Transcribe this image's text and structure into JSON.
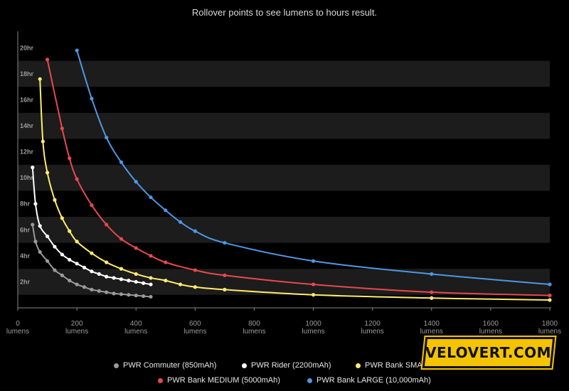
{
  "header": {
    "subtitle": "Rollover points to see lumens to hours result."
  },
  "logo": {
    "text": "VELOVERT.COM"
  },
  "colors": {
    "background": "#000000",
    "band": "#1c1c1c",
    "axis": "#888888",
    "tick_label": "#9a9a9a"
  },
  "chart_data": {
    "type": "line",
    "title": "",
    "x_unit": "lumens",
    "xlim": [
      0,
      1800
    ],
    "ylim": [
      0,
      21
    ],
    "x_ticks": [
      0,
      200,
      400,
      600,
      800,
      1000,
      1200,
      1400,
      1600,
      1800
    ],
    "x_tick_labels": [
      "0",
      "200",
      "400",
      "600",
      "800",
      "1000",
      "1200",
      "1400",
      "1600",
      "1800"
    ],
    "y_ticks": [
      2,
      4,
      6,
      8,
      10,
      12,
      14,
      16,
      18,
      20
    ],
    "y_tick_labels": [
      "2hr",
      "4hr",
      "6hr",
      "8hr",
      "10hr",
      "12hr",
      "14hr",
      "16hr",
      "18hr",
      "20hr"
    ],
    "grid": "alternating horizontal bands",
    "legend_position": "bottom",
    "series": [
      {
        "name": "PWR Commuter (850mAh)",
        "color": "#9a9a9a",
        "x": [
          50,
          60,
          75,
          100,
          125,
          150,
          175,
          200,
          225,
          250,
          275,
          300,
          325,
          350,
          375,
          400,
          425,
          450
        ],
        "y": [
          6.4,
          5.1,
          4.3,
          3.6,
          2.9,
          2.5,
          2.1,
          1.8,
          1.6,
          1.4,
          1.3,
          1.2,
          1.1,
          1.05,
          1.0,
          0.95,
          0.9,
          0.85
        ]
      },
      {
        "name": "PWR Rider (2200mAh)",
        "color": "#ffffff",
        "x": [
          50,
          60,
          75,
          100,
          125,
          150,
          175,
          200,
          225,
          250,
          275,
          300,
          325,
          350,
          375,
          400,
          425,
          450
        ],
        "y": [
          10.8,
          8.0,
          6.3,
          5.5,
          4.7,
          4.1,
          3.7,
          3.4,
          3.1,
          2.8,
          2.6,
          2.4,
          2.3,
          2.2,
          2.1,
          2.0,
          1.9,
          1.8
        ]
      },
      {
        "name": "PWR Bank SMALL",
        "color": "#ffec6e",
        "x": [
          75,
          85,
          100,
          125,
          150,
          175,
          200,
          250,
          300,
          350,
          400,
          450,
          500,
          550,
          600,
          700,
          1000,
          1400,
          1800
        ],
        "y": [
          17.6,
          12.8,
          10.4,
          8.3,
          6.9,
          5.9,
          5.1,
          4.2,
          3.5,
          3.0,
          2.6,
          2.3,
          2.1,
          1.8,
          1.6,
          1.4,
          1.0,
          0.75,
          0.6
        ]
      },
      {
        "name": "PWR Bank MEDIUM (5000mAh)",
        "color": "#e8484f",
        "x": [
          100,
          150,
          175,
          200,
          250,
          300,
          350,
          400,
          450,
          500,
          600,
          700,
          1000,
          1400,
          1800
        ],
        "y": [
          19.1,
          13.8,
          11.5,
          9.9,
          7.9,
          6.4,
          5.3,
          4.6,
          4.0,
          3.5,
          2.9,
          2.5,
          1.8,
          1.2,
          0.95
        ]
      },
      {
        "name": "PWR Bank LARGE (10,000mAh)",
        "color": "#4f97e3",
        "x": [
          200,
          250,
          300,
          350,
          400,
          450,
          500,
          550,
          600,
          700,
          1000,
          1400,
          1800
        ],
        "y": [
          19.8,
          16.1,
          13.1,
          11.2,
          9.7,
          8.5,
          7.5,
          6.6,
          5.9,
          5.0,
          3.6,
          2.6,
          1.8
        ]
      }
    ]
  }
}
